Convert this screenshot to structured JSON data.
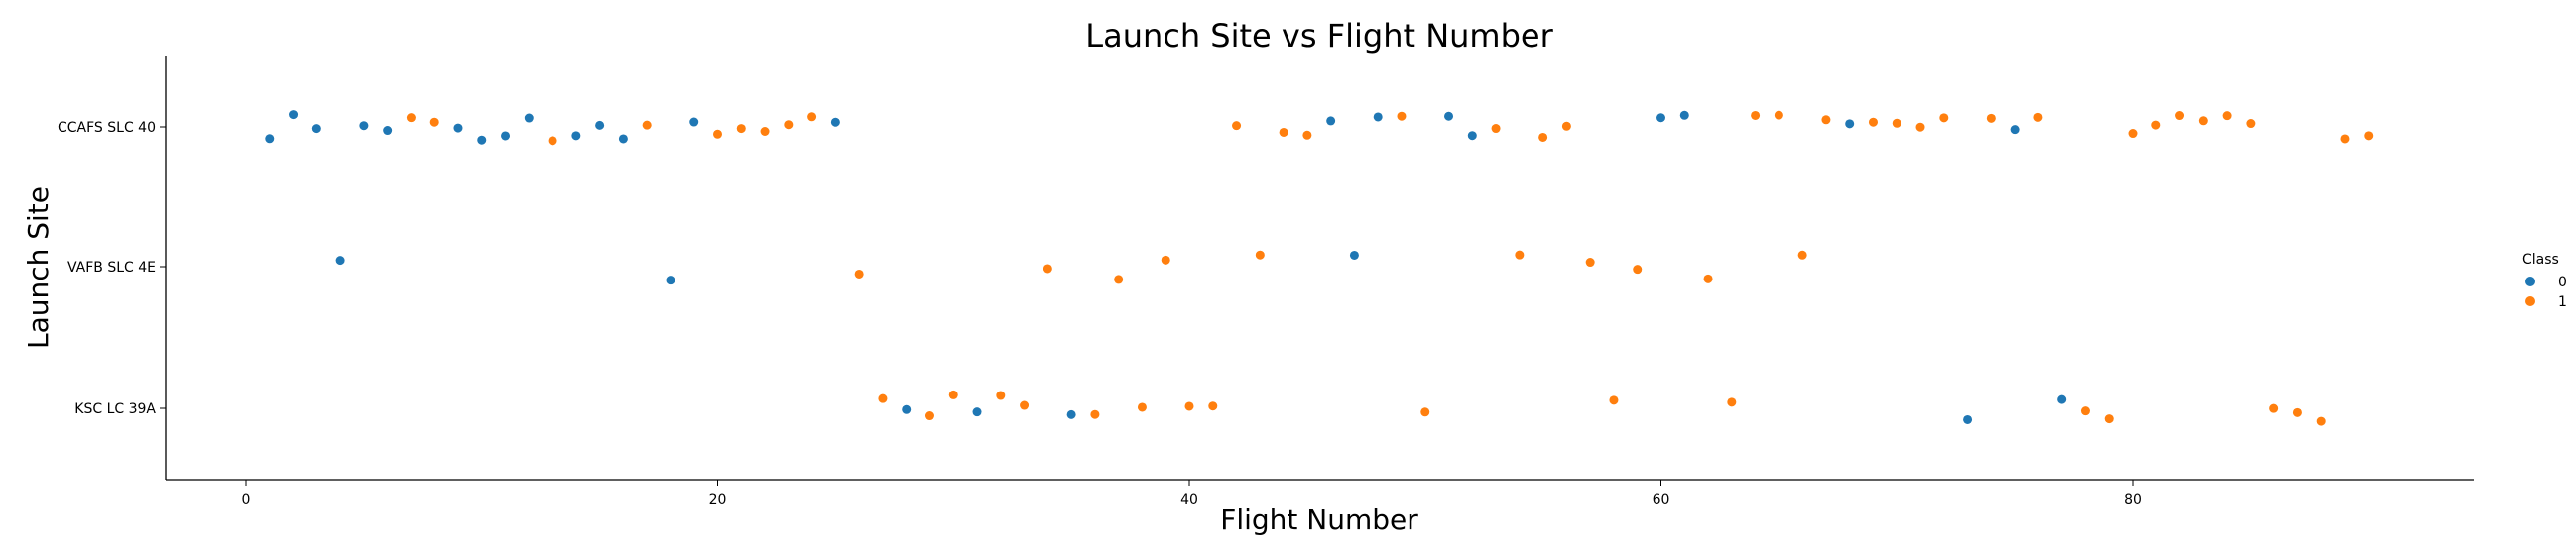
{
  "chart_data": {
    "type": "scatter",
    "title": "Launch Site vs Flight Number",
    "xlabel": "Flight Number",
    "ylabel": "Launch Site",
    "xlim": [
      -3.5,
      94.5
    ],
    "xticks": [
      0,
      20,
      40,
      60,
      80
    ],
    "categories": [
      "CCAFS SLC 40",
      "VAFB SLC 4E",
      "KSC LC 39A"
    ],
    "legend": {
      "title": "Class",
      "position": "right",
      "labels": [
        "0",
        "1"
      ]
    },
    "colors": {
      "0": "#1f77b4",
      "1": "#ff7f0e"
    },
    "points": [
      {
        "x": 1,
        "site": "CCAFS SLC 40",
        "class": 0
      },
      {
        "x": 2,
        "site": "CCAFS SLC 40",
        "class": 0
      },
      {
        "x": 3,
        "site": "CCAFS SLC 40",
        "class": 0
      },
      {
        "x": 4,
        "site": "VAFB SLC 4E",
        "class": 0
      },
      {
        "x": 5,
        "site": "CCAFS SLC 40",
        "class": 0
      },
      {
        "x": 6,
        "site": "CCAFS SLC 40",
        "class": 0
      },
      {
        "x": 7,
        "site": "CCAFS SLC 40",
        "class": 1
      },
      {
        "x": 8,
        "site": "CCAFS SLC 40",
        "class": 1
      },
      {
        "x": 9,
        "site": "CCAFS SLC 40",
        "class": 0
      },
      {
        "x": 10,
        "site": "CCAFS SLC 40",
        "class": 0
      },
      {
        "x": 11,
        "site": "CCAFS SLC 40",
        "class": 0
      },
      {
        "x": 12,
        "site": "CCAFS SLC 40",
        "class": 0
      },
      {
        "x": 13,
        "site": "CCAFS SLC 40",
        "class": 1
      },
      {
        "x": 14,
        "site": "CCAFS SLC 40",
        "class": 0
      },
      {
        "x": 15,
        "site": "CCAFS SLC 40",
        "class": 0
      },
      {
        "x": 16,
        "site": "CCAFS SLC 40",
        "class": 0
      },
      {
        "x": 17,
        "site": "CCAFS SLC 40",
        "class": 1
      },
      {
        "x": 18,
        "site": "VAFB SLC 4E",
        "class": 0
      },
      {
        "x": 19,
        "site": "CCAFS SLC 40",
        "class": 0
      },
      {
        "x": 20,
        "site": "CCAFS SLC 40",
        "class": 1
      },
      {
        "x": 21,
        "site": "CCAFS SLC 40",
        "class": 1
      },
      {
        "x": 22,
        "site": "CCAFS SLC 40",
        "class": 1
      },
      {
        "x": 23,
        "site": "CCAFS SLC 40",
        "class": 1
      },
      {
        "x": 24,
        "site": "CCAFS SLC 40",
        "class": 1
      },
      {
        "x": 25,
        "site": "CCAFS SLC 40",
        "class": 0
      },
      {
        "x": 26,
        "site": "VAFB SLC 4E",
        "class": 1
      },
      {
        "x": 27,
        "site": "KSC LC 39A",
        "class": 1
      },
      {
        "x": 28,
        "site": "KSC LC 39A",
        "class": 0
      },
      {
        "x": 29,
        "site": "KSC LC 39A",
        "class": 1
      },
      {
        "x": 30,
        "site": "KSC LC 39A",
        "class": 1
      },
      {
        "x": 31,
        "site": "KSC LC 39A",
        "class": 0
      },
      {
        "x": 32,
        "site": "KSC LC 39A",
        "class": 1
      },
      {
        "x": 33,
        "site": "KSC LC 39A",
        "class": 1
      },
      {
        "x": 34,
        "site": "VAFB SLC 4E",
        "class": 1
      },
      {
        "x": 35,
        "site": "KSC LC 39A",
        "class": 0
      },
      {
        "x": 36,
        "site": "KSC LC 39A",
        "class": 1
      },
      {
        "x": 37,
        "site": "VAFB SLC 4E",
        "class": 1
      },
      {
        "x": 38,
        "site": "KSC LC 39A",
        "class": 1
      },
      {
        "x": 39,
        "site": "VAFB SLC 4E",
        "class": 1
      },
      {
        "x": 40,
        "site": "KSC LC 39A",
        "class": 1
      },
      {
        "x": 41,
        "site": "KSC LC 39A",
        "class": 1
      },
      {
        "x": 42,
        "site": "CCAFS SLC 40",
        "class": 1
      },
      {
        "x": 43,
        "site": "VAFB SLC 4E",
        "class": 1
      },
      {
        "x": 44,
        "site": "CCAFS SLC 40",
        "class": 1
      },
      {
        "x": 45,
        "site": "CCAFS SLC 40",
        "class": 1
      },
      {
        "x": 46,
        "site": "CCAFS SLC 40",
        "class": 0
      },
      {
        "x": 47,
        "site": "VAFB SLC 4E",
        "class": 0
      },
      {
        "x": 48,
        "site": "CCAFS SLC 40",
        "class": 0
      },
      {
        "x": 49,
        "site": "CCAFS SLC 40",
        "class": 1
      },
      {
        "x": 50,
        "site": "KSC LC 39A",
        "class": 1
      },
      {
        "x": 51,
        "site": "CCAFS SLC 40",
        "class": 0
      },
      {
        "x": 52,
        "site": "CCAFS SLC 40",
        "class": 0
      },
      {
        "x": 53,
        "site": "CCAFS SLC 40",
        "class": 1
      },
      {
        "x": 54,
        "site": "VAFB SLC 4E",
        "class": 1
      },
      {
        "x": 55,
        "site": "CCAFS SLC 40",
        "class": 1
      },
      {
        "x": 56,
        "site": "CCAFS SLC 40",
        "class": 1
      },
      {
        "x": 57,
        "site": "VAFB SLC 4E",
        "class": 1
      },
      {
        "x": 58,
        "site": "KSC LC 39A",
        "class": 1
      },
      {
        "x": 59,
        "site": "VAFB SLC 4E",
        "class": 1
      },
      {
        "x": 60,
        "site": "CCAFS SLC 40",
        "class": 0
      },
      {
        "x": 61,
        "site": "CCAFS SLC 40",
        "class": 0
      },
      {
        "x": 62,
        "site": "VAFB SLC 4E",
        "class": 1
      },
      {
        "x": 63,
        "site": "KSC LC 39A",
        "class": 1
      },
      {
        "x": 64,
        "site": "CCAFS SLC 40",
        "class": 1
      },
      {
        "x": 65,
        "site": "CCAFS SLC 40",
        "class": 1
      },
      {
        "x": 66,
        "site": "VAFB SLC 4E",
        "class": 1
      },
      {
        "x": 67,
        "site": "CCAFS SLC 40",
        "class": 1
      },
      {
        "x": 68,
        "site": "CCAFS SLC 40",
        "class": 0
      },
      {
        "x": 69,
        "site": "CCAFS SLC 40",
        "class": 1
      },
      {
        "x": 70,
        "site": "CCAFS SLC 40",
        "class": 1
      },
      {
        "x": 71,
        "site": "CCAFS SLC 40",
        "class": 1
      },
      {
        "x": 72,
        "site": "CCAFS SLC 40",
        "class": 1
      },
      {
        "x": 73,
        "site": "KSC LC 39A",
        "class": 0
      },
      {
        "x": 74,
        "site": "CCAFS SLC 40",
        "class": 1
      },
      {
        "x": 75,
        "site": "CCAFS SLC 40",
        "class": 0
      },
      {
        "x": 76,
        "site": "CCAFS SLC 40",
        "class": 1
      },
      {
        "x": 77,
        "site": "KSC LC 39A",
        "class": 0
      },
      {
        "x": 78,
        "site": "KSC LC 39A",
        "class": 1
      },
      {
        "x": 79,
        "site": "KSC LC 39A",
        "class": 1
      },
      {
        "x": 80,
        "site": "CCAFS SLC 40",
        "class": 1
      },
      {
        "x": 81,
        "site": "CCAFS SLC 40",
        "class": 1
      },
      {
        "x": 82,
        "site": "CCAFS SLC 40",
        "class": 1
      },
      {
        "x": 83,
        "site": "CCAFS SLC 40",
        "class": 1
      },
      {
        "x": 84,
        "site": "CCAFS SLC 40",
        "class": 1
      },
      {
        "x": 85,
        "site": "CCAFS SLC 40",
        "class": 1
      },
      {
        "x": 86,
        "site": "KSC LC 39A",
        "class": 1
      },
      {
        "x": 87,
        "site": "KSC LC 39A",
        "class": 1
      },
      {
        "x": 88,
        "site": "KSC LC 39A",
        "class": 1
      },
      {
        "x": 89,
        "site": "CCAFS SLC 40",
        "class": 1
      },
      {
        "x": 90,
        "site": "CCAFS SLC 40",
        "class": 1
      }
    ]
  }
}
